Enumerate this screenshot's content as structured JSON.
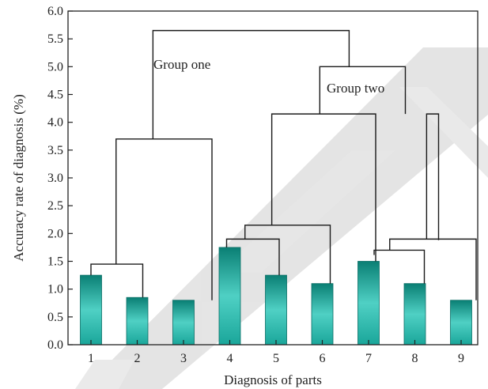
{
  "chart_data": {
    "type": "bar",
    "title": "",
    "xlabel": "Diagnosis of parts",
    "ylabel": "Accuracy rate of diagnosis (%)",
    "categories": [
      "1",
      "2",
      "3",
      "4",
      "5",
      "6",
      "7",
      "8",
      "9"
    ],
    "values": [
      1.25,
      0.85,
      0.8,
      1.75,
      1.25,
      1.1,
      1.5,
      1.1,
      0.8
    ],
    "ylim": [
      0,
      6.0
    ],
    "yticks": [
      "0.0",
      "0.5",
      "1.0",
      "1.5",
      "2.0",
      "2.5",
      "3.0",
      "3.5",
      "4.0",
      "4.5",
      "5.0",
      "5.5",
      "6.0"
    ],
    "grid": false,
    "bar_color": "#1aa69a",
    "bar_color_light": "#4fd0c4",
    "bar_color_dark": "#0a7f74",
    "annotations": [
      "Group one",
      "Group two"
    ],
    "dendrogram": [
      {
        "children": [
          "1",
          "2"
        ],
        "height": 1.45
      },
      {
        "children": [
          "4",
          "5"
        ],
        "height": 1.9
      },
      {
        "children": [
          "7",
          "8"
        ],
        "height": 1.7
      },
      {
        "children": [
          "1-2",
          "3"
        ],
        "height": 3.7
      },
      {
        "children": [
          "4-5",
          "6"
        ],
        "height": 2.15
      },
      {
        "children": [
          "7-8",
          "9"
        ],
        "height": 1.9
      },
      {
        "children": [
          "4-5-6",
          "7-8-9"
        ],
        "height": 4.15
      },
      {
        "children": [
          "4-9",
          "branch"
        ],
        "height": 5.0
      },
      {
        "children": [
          "1-3",
          "4-9"
        ],
        "height": 5.65
      }
    ]
  }
}
